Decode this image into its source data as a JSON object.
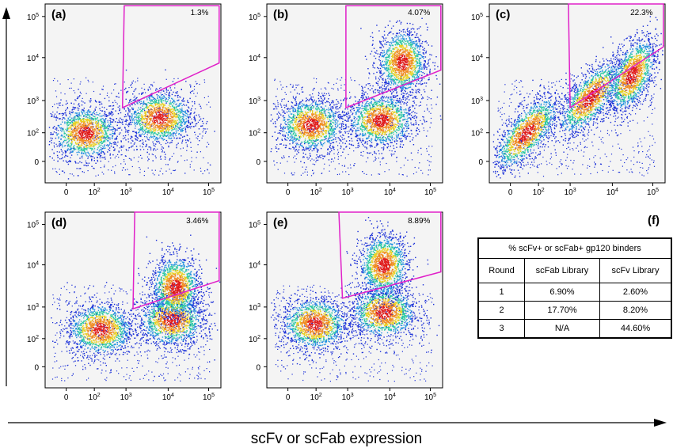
{
  "figure": {
    "x_axis_title": "scFv or scFab expression",
    "axis_tick_labels": {
      "zero": "0",
      "ten": "10",
      "exponents": [
        "2",
        "3",
        "4",
        "5"
      ]
    },
    "colors": {
      "gate": "#e020c8",
      "density_low": "#1a2fd8",
      "density_mid": "#28c8a0",
      "density_high": "#e8d020",
      "density_peak": "#e01818",
      "panel_background": "#f4f4f4"
    }
  },
  "chart_data": [
    {
      "panel": "(a)",
      "type": "scatter",
      "gate_percent": "1.3%",
      "xscale": "biexponential",
      "yscale": "biexponential",
      "populations": [
        {
          "x_center": 30,
          "y_center": 100
        },
        {
          "x_center": 6000,
          "y_center": 300
        }
      ]
    },
    {
      "panel": "(b)",
      "type": "scatter",
      "gate_percent": "4.07%",
      "xscale": "biexponential",
      "yscale": "biexponential",
      "populations": [
        {
          "x_center": 50,
          "y_center": 180
        },
        {
          "x_center": 6000,
          "y_center": 250
        },
        {
          "x_center": 20000,
          "y_center": 8000
        }
      ]
    },
    {
      "panel": "(c)",
      "type": "scatter",
      "gate_percent": "22.3%",
      "xscale": "biexponential",
      "yscale": "biexponential",
      "populations": [
        {
          "x_center": 20,
          "y_center": 100
        },
        {
          "x_center": 3000,
          "y_center": 1200
        },
        {
          "x_center": 30000,
          "y_center": 4000
        }
      ]
    },
    {
      "panel": "(d)",
      "type": "scatter",
      "gate_percent": "3.46%",
      "xscale": "biexponential",
      "yscale": "biexponential",
      "populations": [
        {
          "x_center": 150,
          "y_center": 200
        },
        {
          "x_center": 12000,
          "y_center": 400
        },
        {
          "x_center": 15000,
          "y_center": 3000
        }
      ]
    },
    {
      "panel": "(e)",
      "type": "scatter",
      "gate_percent": "8.89%",
      "xscale": "biexponential",
      "yscale": "biexponential",
      "populations": [
        {
          "x_center": 80,
          "y_center": 300
        },
        {
          "x_center": 7000,
          "y_center": 700
        },
        {
          "x_center": 7000,
          "y_center": 10000
        }
      ]
    },
    {
      "panel": "(f)",
      "type": "table",
      "title": "% scFv+ or scFab+ gp120 binders",
      "columns": [
        "Round",
        "scFab Library",
        "scFv Library"
      ],
      "rows": [
        [
          "1",
          "6.90%",
          "2.60%"
        ],
        [
          "2",
          "17.70%",
          "8.20%"
        ],
        [
          "3",
          "N/A",
          "44.60%"
        ]
      ]
    }
  ]
}
